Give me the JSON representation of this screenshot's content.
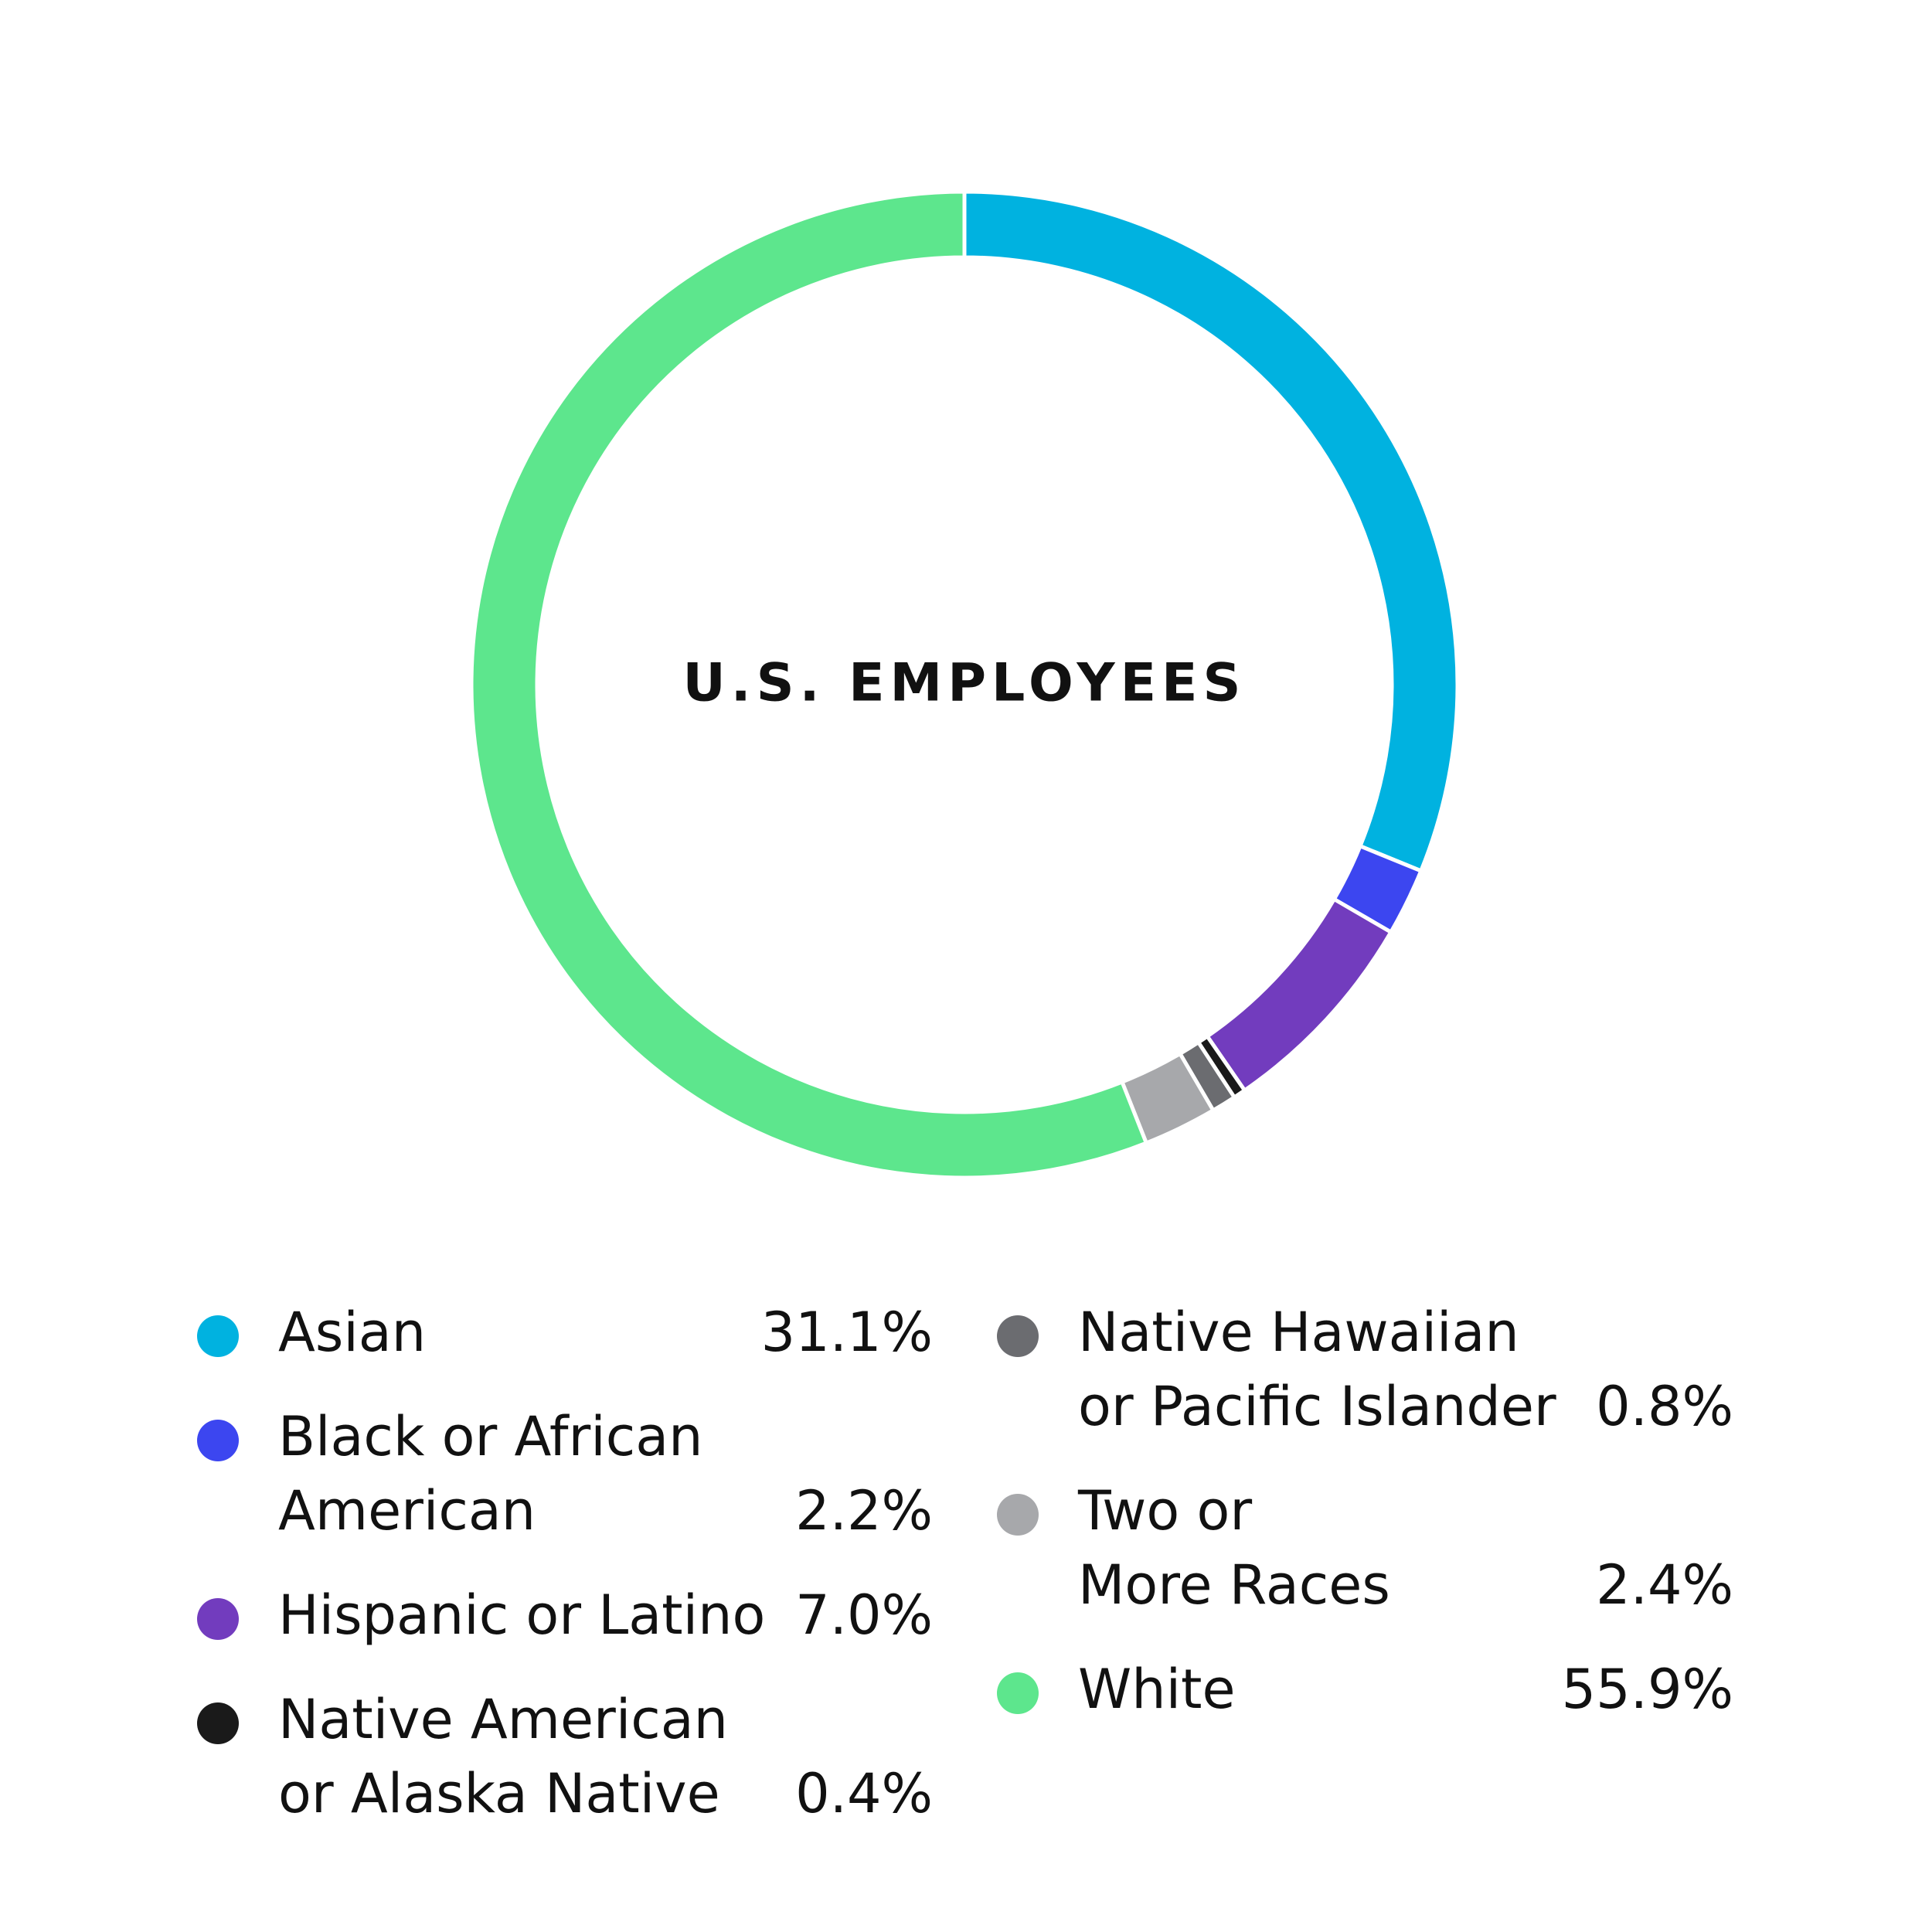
{
  "chart_data": {
    "type": "donut",
    "title": "U.S. EMPLOYEES",
    "categories": [
      "Asian",
      "Black or African\nAmerican",
      "Hispanic or Latino",
      "Native American\nor Alaska Native",
      "Native Hawaiian\nor Pacific Islander",
      "Two or\nMore Races",
      "White"
    ],
    "values": [
      31.1,
      2.2,
      7.0,
      0.4,
      0.8,
      2.4,
      55.9
    ],
    "value_labels": [
      "31.1%",
      "2.2%",
      "7.0%",
      "0.4%",
      "0.8%",
      "2.4%",
      "55.9%"
    ],
    "colors": [
      "#00b2e0",
      "#3c46f0",
      "#723cbe",
      "#1a1a1a",
      "#6b6c70",
      "#a7a8ab",
      "#5de68d"
    ]
  }
}
